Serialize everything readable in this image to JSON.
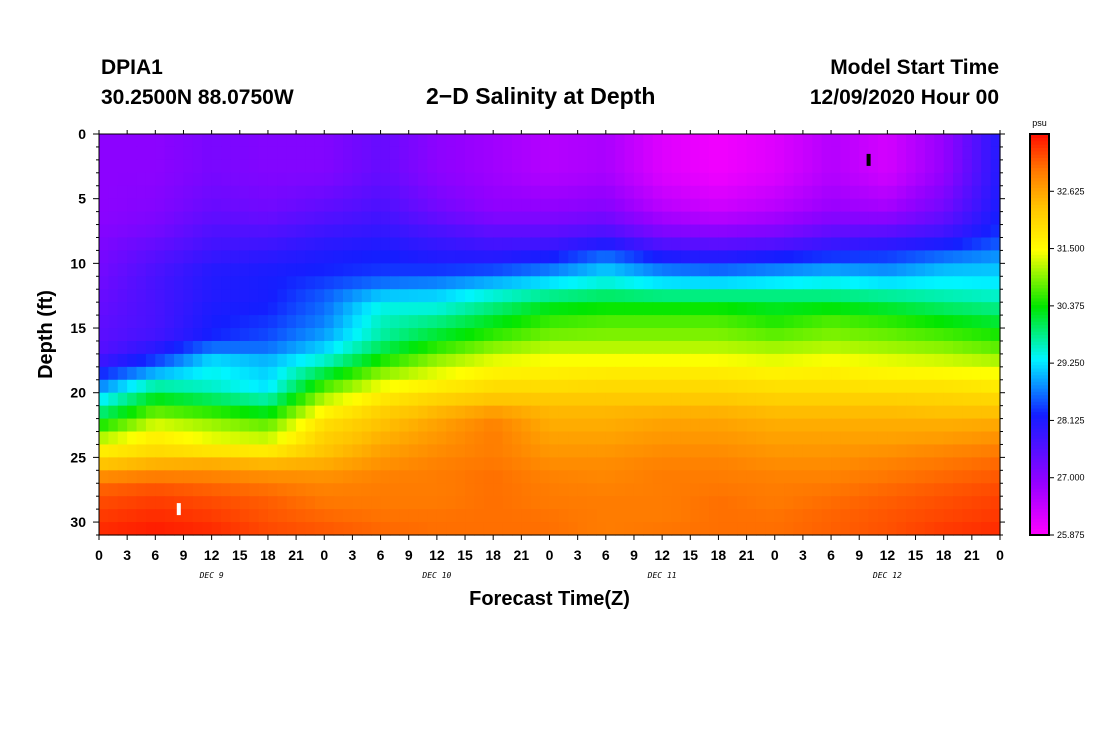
{
  "header": {
    "station": "DPIA1",
    "coords": "30.2500N 88.0750W",
    "title": "2−D Salinity at Depth",
    "model_start_label": "Model Start Time",
    "model_start_value": "12/09/2020 Hour 00"
  },
  "chart_data": {
    "type": "heatmap",
    "title": "2−D Salinity at Depth",
    "xlabel": "Forecast Time(Z)",
    "ylabel": "Depth (ft)",
    "x_unit": "forecast hour",
    "xlim": [
      0,
      96
    ],
    "ylim": [
      0,
      31
    ],
    "x_tick_values": [
      0,
      3,
      6,
      9,
      12,
      15,
      18,
      21,
      24,
      27,
      30,
      33,
      36,
      39,
      42,
      45,
      48,
      51,
      54,
      57,
      60,
      63,
      66,
      69,
      72,
      75,
      78,
      81,
      84,
      87,
      90,
      93,
      96
    ],
    "x_tick_labels": [
      "0",
      "3",
      "6",
      "9",
      "12",
      "15",
      "18",
      "21",
      "0",
      "3",
      "6",
      "9",
      "12",
      "15",
      "18",
      "21",
      "0",
      "3",
      "6",
      "9",
      "12",
      "15",
      "18",
      "21",
      "0",
      "3",
      "6",
      "9",
      "12",
      "15",
      "18",
      "21",
      "0"
    ],
    "day_labels": [
      {
        "label": "DEC 9",
        "hour": 12
      },
      {
        "label": "DEC 10",
        "hour": 36
      },
      {
        "label": "DEC 11",
        "hour": 60
      },
      {
        "label": "DEC 12",
        "hour": 84
      }
    ],
    "y_tick_values": [
      0,
      5,
      10,
      15,
      20,
      25,
      30
    ],
    "y_tick_labels": [
      "0",
      "5",
      "10",
      "15",
      "20",
      "25",
      "30"
    ],
    "colorbar": {
      "unit": "psu",
      "min": 25.875,
      "max": 33.75,
      "tick_values": [
        25.875,
        27.0,
        28.125,
        29.25,
        30.375,
        31.5,
        32.625
      ],
      "tick_labels": [
        "25.875",
        "27.000",
        "28.125",
        "29.250",
        "30.375",
        "31.500",
        "32.625"
      ]
    },
    "x": [
      0,
      6,
      12,
      18,
      24,
      30,
      36,
      42,
      48,
      54,
      60,
      66,
      72,
      78,
      84,
      90,
      96
    ],
    "depth": [
      0,
      3,
      6,
      8,
      9,
      10,
      11,
      12,
      13,
      14,
      15,
      16,
      17,
      18,
      19,
      20,
      21,
      22,
      23,
      24,
      25,
      26,
      27,
      28,
      30,
      31
    ],
    "z": [
      [
        27.0,
        27.0,
        27.2,
        27.1,
        27.1,
        27.4,
        27.0,
        26.8,
        26.6,
        26.7,
        26.2,
        26.0,
        26.2,
        26.6,
        26.3,
        26.9,
        28.1
      ],
      [
        27.0,
        27.0,
        27.2,
        27.1,
        27.1,
        27.4,
        27.0,
        26.8,
        26.6,
        26.7,
        26.2,
        26.0,
        26.2,
        26.6,
        26.3,
        26.9,
        28.1
      ],
      [
        27.0,
        27.1,
        27.4,
        27.3,
        27.5,
        27.7,
        27.3,
        27.0,
        27.0,
        27.1,
        26.6,
        26.4,
        26.6,
        26.9,
        26.8,
        27.3,
        28.2
      ],
      [
        27.1,
        27.3,
        27.7,
        27.7,
        27.9,
        28.0,
        27.8,
        27.6,
        27.6,
        27.8,
        27.3,
        27.2,
        27.3,
        27.6,
        27.7,
        27.9,
        28.4
      ],
      [
        27.2,
        27.5,
        27.8,
        27.9,
        28.1,
        28.2,
        28.0,
        27.9,
        28.0,
        28.4,
        27.9,
        27.8,
        27.9,
        28.1,
        28.2,
        28.4,
        28.7
      ],
      [
        27.2,
        27.6,
        28.0,
        28.1,
        28.2,
        28.3,
        28.2,
        28.2,
        28.4,
        28.9,
        28.4,
        28.3,
        28.5,
        28.6,
        28.6,
        28.9,
        29.0
      ],
      [
        27.3,
        27.7,
        28.1,
        28.2,
        28.3,
        28.4,
        28.5,
        28.7,
        29.0,
        29.3,
        29.0,
        28.9,
        29.0,
        29.2,
        29.0,
        29.2,
        29.2
      ],
      [
        27.3,
        27.7,
        28.1,
        28.2,
        28.5,
        28.9,
        29.0,
        29.3,
        29.5,
        29.7,
        29.5,
        29.5,
        29.6,
        29.6,
        29.5,
        29.5,
        29.4
      ],
      [
        27.4,
        27.7,
        28.1,
        28.2,
        28.6,
        29.3,
        29.3,
        29.7,
        30.1,
        30.2,
        30.2,
        30.2,
        30.1,
        30.1,
        30.0,
        29.8,
        29.7
      ],
      [
        27.4,
        27.7,
        28.2,
        28.3,
        28.7,
        29.6,
        29.7,
        30.1,
        30.5,
        30.6,
        30.6,
        30.6,
        30.4,
        30.6,
        30.4,
        30.2,
        30.0
      ],
      [
        27.5,
        27.7,
        28.2,
        28.4,
        28.8,
        29.6,
        30.0,
        30.4,
        30.7,
        30.8,
        30.8,
        30.8,
        30.6,
        30.8,
        30.7,
        30.5,
        30.3
      ],
      [
        27.5,
        27.8,
        28.3,
        28.5,
        29.0,
        29.8,
        30.3,
        30.7,
        31.0,
        31.0,
        31.0,
        31.0,
        30.9,
        31.0,
        30.9,
        30.8,
        30.6
      ],
      [
        27.6,
        28.2,
        29.0,
        28.8,
        29.3,
        30.2,
        30.8,
        31.2,
        31.3,
        31.3,
        31.3,
        31.3,
        31.2,
        31.3,
        31.2,
        31.1,
        30.9
      ],
      [
        28.0,
        28.6,
        29.4,
        29.2,
        29.8,
        30.7,
        31.2,
        31.5,
        31.6,
        31.6,
        31.6,
        31.6,
        31.5,
        31.6,
        31.5,
        31.4,
        31.3
      ],
      [
        28.5,
        29.4,
        29.4,
        29.1,
        30.4,
        31.2,
        31.5,
        31.8,
        31.8,
        31.9,
        31.9,
        31.9,
        31.8,
        31.8,
        31.7,
        31.7,
        31.6
      ],
      [
        29.0,
        30.0,
        29.7,
        29.4,
        30.9,
        31.6,
        31.9,
        32.1,
        32.1,
        32.1,
        32.1,
        32.1,
        32.0,
        32.0,
        32.0,
        32.0,
        31.9
      ],
      [
        29.6,
        30.6,
        30.3,
        30.0,
        31.4,
        32.0,
        32.3,
        32.5,
        32.4,
        32.4,
        32.4,
        32.4,
        32.3,
        32.3,
        32.3,
        32.2,
        32.2
      ],
      [
        30.1,
        31.0,
        30.8,
        30.5,
        31.8,
        32.3,
        32.6,
        32.9,
        32.5,
        32.5,
        32.6,
        32.6,
        32.5,
        32.5,
        32.5,
        32.5,
        32.5
      ],
      [
        30.8,
        31.6,
        31.3,
        31.1,
        32.1,
        32.4,
        32.7,
        33.0,
        32.6,
        32.6,
        32.7,
        32.7,
        32.6,
        32.6,
        32.6,
        32.6,
        32.7
      ],
      [
        31.4,
        31.8,
        31.4,
        31.3,
        32.2,
        32.6,
        32.8,
        33.0,
        32.7,
        32.7,
        32.8,
        32.8,
        32.7,
        32.7,
        32.7,
        32.8,
        32.9
      ],
      [
        32.0,
        32.2,
        32.3,
        32.2,
        32.4,
        32.7,
        32.9,
        33.0,
        32.8,
        32.8,
        32.9,
        32.9,
        32.8,
        32.8,
        32.9,
        33.0,
        33.1
      ],
      [
        32.6,
        32.8,
        32.8,
        32.7,
        32.7,
        32.9,
        33.0,
        33.1,
        32.9,
        32.9,
        33.0,
        33.0,
        32.9,
        32.9,
        33.0,
        33.1,
        33.2
      ],
      [
        33.1,
        33.2,
        33.1,
        33.0,
        32.9,
        33.0,
        33.0,
        33.1,
        33.0,
        32.9,
        33.0,
        33.0,
        33.0,
        33.0,
        33.1,
        33.2,
        33.3
      ],
      [
        33.3,
        33.4,
        33.3,
        33.2,
        33.0,
        33.0,
        33.0,
        33.1,
        33.0,
        33.0,
        33.0,
        33.1,
        33.0,
        33.1,
        33.2,
        33.3,
        33.4
      ],
      [
        33.5,
        33.6,
        33.5,
        33.3,
        33.2,
        33.1,
        33.1,
        33.1,
        33.1,
        33.0,
        33.0,
        33.1,
        33.1,
        33.2,
        33.3,
        33.4,
        33.5
      ],
      [
        33.6,
        33.7,
        33.6,
        33.4,
        33.3,
        33.2,
        33.1,
        33.1,
        33.1,
        33.0,
        33.1,
        33.1,
        33.1,
        33.2,
        33.3,
        33.5,
        33.6
      ]
    ],
    "markers": [
      {
        "hour": 8.5,
        "depth": 29.0,
        "color": "#ffffff"
      },
      {
        "hour": 82.0,
        "depth": 2.0,
        "color": "#000000"
      }
    ]
  }
}
